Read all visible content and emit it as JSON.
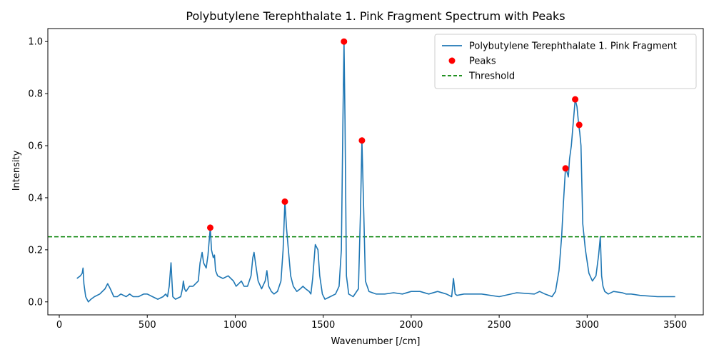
{
  "chart_data": {
    "type": "line",
    "title": "Polybutylene Terephthalate 1. Pink Fragment Spectrum with Peaks",
    "xlabel": "Wavenumber [/cm]",
    "ylabel": "Intensity",
    "xlim": [
      -65,
      3660
    ],
    "ylim": [
      -0.05,
      1.05
    ],
    "xticks": [
      0,
      500,
      1000,
      1500,
      2000,
      2500,
      3000,
      3500
    ],
    "yticks": [
      0.0,
      0.2,
      0.4,
      0.6,
      0.8,
      1.0
    ],
    "xtick_labels": [
      "0",
      "500",
      "1000",
      "1500",
      "2000",
      "2500",
      "3000",
      "3500"
    ],
    "ytick_labels": [
      "0.0",
      "0.2",
      "0.4",
      "0.6",
      "0.8",
      "1.0"
    ],
    "grid": false,
    "legend_position": "upper right",
    "colors": {
      "line": "#1f77b4",
      "peaks": "#ff0000",
      "threshold": "#008000"
    },
    "series": [
      {
        "name": "Polybutylene Terephthalate 1. Pink Fragment",
        "kind": "line",
        "x": [
          100,
          120,
          130,
          135,
          140,
          150,
          165,
          180,
          200,
          230,
          260,
          275,
          290,
          310,
          330,
          350,
          380,
          400,
          420,
          450,
          480,
          500,
          530,
          560,
          590,
          605,
          615,
          625,
          635,
          645,
          660,
          690,
          700,
          705,
          712,
          720,
          740,
          760,
          790,
          800,
          812,
          820,
          835,
          845,
          858,
          865,
          875,
          882,
          888,
          900,
          930,
          960,
          975,
          990,
          1005,
          1020,
          1035,
          1050,
          1070,
          1090,
          1100,
          1107,
          1115,
          1130,
          1150,
          1170,
          1180,
          1190,
          1205,
          1220,
          1240,
          1260,
          1272,
          1282,
          1292,
          1302,
          1315,
          1330,
          1350,
          1370,
          1385,
          1400,
          1420,
          1430,
          1440,
          1455,
          1470,
          1480,
          1495,
          1510,
          1540,
          1570,
          1590,
          1603,
          1612,
          1618,
          1624,
          1632,
          1645,
          1670,
          1700,
          1712,
          1720,
          1730,
          1740,
          1760,
          1800,
          1850,
          1900,
          1950,
          2000,
          2050,
          2100,
          2150,
          2200,
          2230,
          2240,
          2250,
          2260,
          2300,
          2400,
          2500,
          2600,
          2700,
          2730,
          2760,
          2800,
          2820,
          2840,
          2855,
          2865,
          2877,
          2885,
          2893,
          2900,
          2910,
          2920,
          2932,
          2942,
          2952,
          2958,
          2965,
          2975,
          2990,
          3010,
          3030,
          3050,
          3065,
          3075,
          3082,
          3090,
          3100,
          3120,
          3150,
          3200,
          3220,
          3250,
          3300,
          3400,
          3500
        ],
        "y": [
          0.09,
          0.1,
          0.11,
          0.13,
          0.07,
          0.02,
          0.0,
          0.01,
          0.02,
          0.03,
          0.05,
          0.07,
          0.05,
          0.02,
          0.02,
          0.03,
          0.02,
          0.03,
          0.02,
          0.02,
          0.03,
          0.03,
          0.02,
          0.01,
          0.02,
          0.03,
          0.02,
          0.06,
          0.15,
          0.02,
          0.01,
          0.02,
          0.05,
          0.08,
          0.05,
          0.04,
          0.06,
          0.06,
          0.08,
          0.15,
          0.19,
          0.15,
          0.13,
          0.18,
          0.285,
          0.2,
          0.17,
          0.18,
          0.12,
          0.1,
          0.09,
          0.1,
          0.09,
          0.08,
          0.06,
          0.07,
          0.08,
          0.06,
          0.06,
          0.1,
          0.17,
          0.19,
          0.15,
          0.08,
          0.05,
          0.08,
          0.12,
          0.06,
          0.04,
          0.03,
          0.04,
          0.08,
          0.2,
          0.385,
          0.28,
          0.2,
          0.1,
          0.06,
          0.04,
          0.05,
          0.06,
          0.05,
          0.04,
          0.03,
          0.09,
          0.22,
          0.2,
          0.1,
          0.03,
          0.01,
          0.02,
          0.03,
          0.06,
          0.2,
          0.7,
          1.0,
          0.7,
          0.1,
          0.03,
          0.02,
          0.05,
          0.35,
          0.62,
          0.35,
          0.08,
          0.04,
          0.03,
          0.03,
          0.035,
          0.03,
          0.04,
          0.04,
          0.03,
          0.04,
          0.03,
          0.02,
          0.09,
          0.03,
          0.025,
          0.03,
          0.03,
          0.02,
          0.035,
          0.03,
          0.04,
          0.03,
          0.02,
          0.04,
          0.12,
          0.25,
          0.38,
          0.513,
          0.5,
          0.48,
          0.55,
          0.6,
          0.68,
          0.778,
          0.75,
          0.68,
          0.65,
          0.6,
          0.3,
          0.2,
          0.11,
          0.08,
          0.1,
          0.18,
          0.25,
          0.1,
          0.06,
          0.04,
          0.03,
          0.04,
          0.035,
          0.03,
          0.03,
          0.025,
          0.02,
          0.02
        ]
      },
      {
        "name": "Peaks",
        "kind": "scatter",
        "x": [
          858,
          1282,
          1618,
          1720,
          2877,
          2932,
          2955
        ],
        "y": [
          0.285,
          0.385,
          1.0,
          0.62,
          0.513,
          0.778,
          0.68
        ]
      },
      {
        "name": "Threshold",
        "kind": "hline",
        "y": 0.25
      }
    ]
  }
}
